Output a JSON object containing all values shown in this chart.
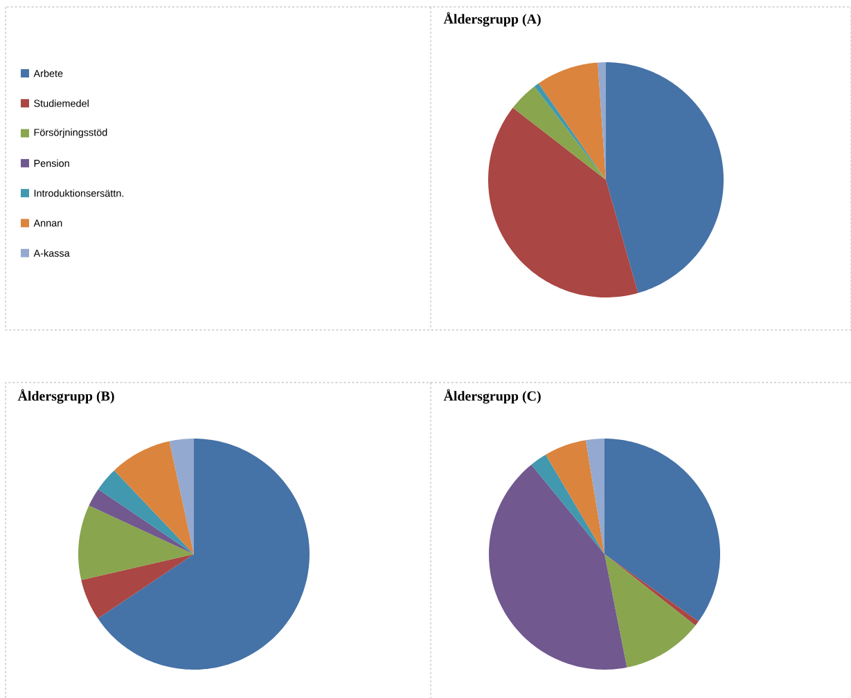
{
  "chart_data": [
    {
      "type": "pie",
      "title": "Åldersgrupp (A)",
      "legend": "left",
      "categories": [
        "Arbete",
        "Studiemedel",
        "Försörjningsstöd",
        "Pension",
        "Introduktionsersättn.",
        "Annan",
        "A-kassa"
      ],
      "values": [
        45.6,
        39.9,
        4.1,
        0,
        0.7,
        8.6,
        1.1
      ],
      "colors": [
        "#4572a7",
        "#aa4643",
        "#89a54e",
        "#71588f",
        "#4198af",
        "#db843d",
        "#93a9cf"
      ]
    },
    {
      "type": "pie",
      "title": "Åldersgrupp (B)",
      "categories": [
        null,
        null,
        null,
        null,
        null,
        null,
        null
      ],
      "values": [
        65.6,
        5.8,
        10.5,
        2.6,
        3.4,
        8.7,
        3.4
      ],
      "colors": [
        "#4572a7",
        "#aa4643",
        "#89a54e",
        "#71588f",
        "#4198af",
        "#db843d",
        "#93a9cf"
      ]
    },
    {
      "type": "pie",
      "title": "Åldersgrupp (C)",
      "categories": [
        null,
        null,
        null,
        null,
        null,
        null,
        null
      ],
      "values": [
        34.9,
        0.7,
        11.3,
        42.2,
        2.4,
        5.9,
        2.6
      ],
      "colors": [
        "#4572a7",
        "#aa4643",
        "#89a54e",
        "#71588f",
        "#4198af",
        "#db843d",
        "#93a9cf"
      ]
    }
  ]
}
